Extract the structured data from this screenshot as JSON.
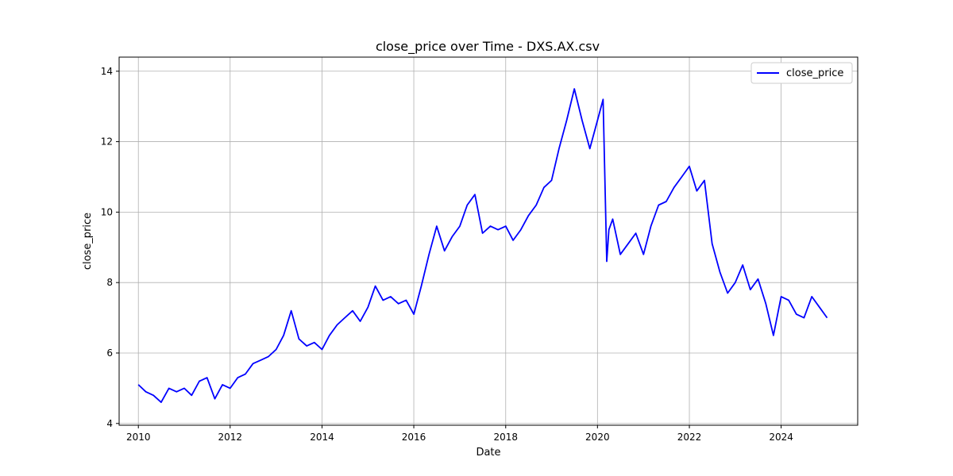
{
  "chart_data": {
    "type": "line",
    "title": "close_price over Time - DXS.AX.csv",
    "xlabel": "Date",
    "ylabel": "close_price",
    "x_ticks": [
      "2010",
      "2012",
      "2014",
      "2016",
      "2018",
      "2020",
      "2022",
      "2024"
    ],
    "y_ticks": [
      "4",
      "6",
      "8",
      "10",
      "12",
      "14"
    ],
    "xlim": [
      "2009-08-01",
      "2025-09-01"
    ],
    "ylim": [
      3.95,
      14.4
    ],
    "grid": true,
    "legend_position": "top-right",
    "series": [
      {
        "name": "close_price",
        "color": "#0000ff",
        "x": [
          "2010-01-01",
          "2010-03-01",
          "2010-05-01",
          "2010-07-01",
          "2010-09-01",
          "2010-11-01",
          "2011-01-01",
          "2011-03-01",
          "2011-05-01",
          "2011-07-01",
          "2011-09-01",
          "2011-11-01",
          "2012-01-01",
          "2012-03-01",
          "2012-05-01",
          "2012-07-01",
          "2012-09-01",
          "2012-11-01",
          "2013-01-01",
          "2013-03-01",
          "2013-05-01",
          "2013-07-01",
          "2013-09-01",
          "2013-11-01",
          "2014-01-01",
          "2014-03-01",
          "2014-05-01",
          "2014-07-01",
          "2014-09-01",
          "2014-11-01",
          "2015-01-01",
          "2015-03-01",
          "2015-05-01",
          "2015-07-01",
          "2015-09-01",
          "2015-11-01",
          "2016-01-01",
          "2016-03-01",
          "2016-05-01",
          "2016-07-01",
          "2016-09-01",
          "2016-11-01",
          "2017-01-01",
          "2017-03-01",
          "2017-05-01",
          "2017-07-01",
          "2017-09-01",
          "2017-11-01",
          "2018-01-01",
          "2018-03-01",
          "2018-05-01",
          "2018-07-01",
          "2018-09-01",
          "2018-11-01",
          "2019-01-01",
          "2019-03-01",
          "2019-05-01",
          "2019-07-01",
          "2019-09-01",
          "2019-11-01",
          "2020-01-01",
          "2020-02-15",
          "2020-03-15",
          "2020-04-01",
          "2020-05-01",
          "2020-07-01",
          "2020-09-01",
          "2020-11-01",
          "2021-01-01",
          "2021-03-01",
          "2021-05-01",
          "2021-07-01",
          "2021-09-01",
          "2021-11-01",
          "2022-01-01",
          "2022-03-01",
          "2022-05-01",
          "2022-07-01",
          "2022-09-01",
          "2022-11-01",
          "2023-01-01",
          "2023-03-01",
          "2023-05-01",
          "2023-07-01",
          "2023-09-01",
          "2023-11-01",
          "2024-01-01",
          "2024-03-01",
          "2024-05-01",
          "2024-07-01",
          "2024-09-01",
          "2024-11-01",
          "2025-01-01"
        ],
        "values": [
          5.1,
          4.9,
          4.8,
          4.6,
          5.0,
          4.9,
          5.0,
          4.8,
          5.2,
          5.3,
          4.7,
          5.1,
          5.0,
          5.3,
          5.4,
          5.7,
          5.8,
          5.9,
          6.1,
          6.5,
          7.2,
          6.4,
          6.2,
          6.3,
          6.1,
          6.5,
          6.8,
          7.0,
          7.2,
          6.9,
          7.3,
          7.9,
          7.5,
          7.6,
          7.4,
          7.5,
          7.1,
          7.9,
          8.8,
          9.6,
          8.9,
          9.3,
          9.6,
          10.2,
          10.5,
          9.4,
          9.6,
          9.5,
          9.6,
          9.2,
          9.5,
          9.9,
          10.2,
          10.7,
          10.9,
          11.8,
          12.6,
          13.5,
          12.6,
          11.8,
          12.6,
          13.2,
          8.6,
          9.5,
          9.8,
          8.8,
          9.1,
          9.4,
          8.8,
          9.6,
          10.2,
          10.3,
          10.7,
          11.0,
          11.3,
          10.6,
          10.9,
          9.1,
          8.3,
          7.7,
          8.0,
          8.5,
          7.8,
          8.1,
          7.4,
          6.5,
          7.6,
          7.5,
          7.1,
          7.0,
          7.6,
          7.3,
          7.0
        ]
      }
    ]
  }
}
